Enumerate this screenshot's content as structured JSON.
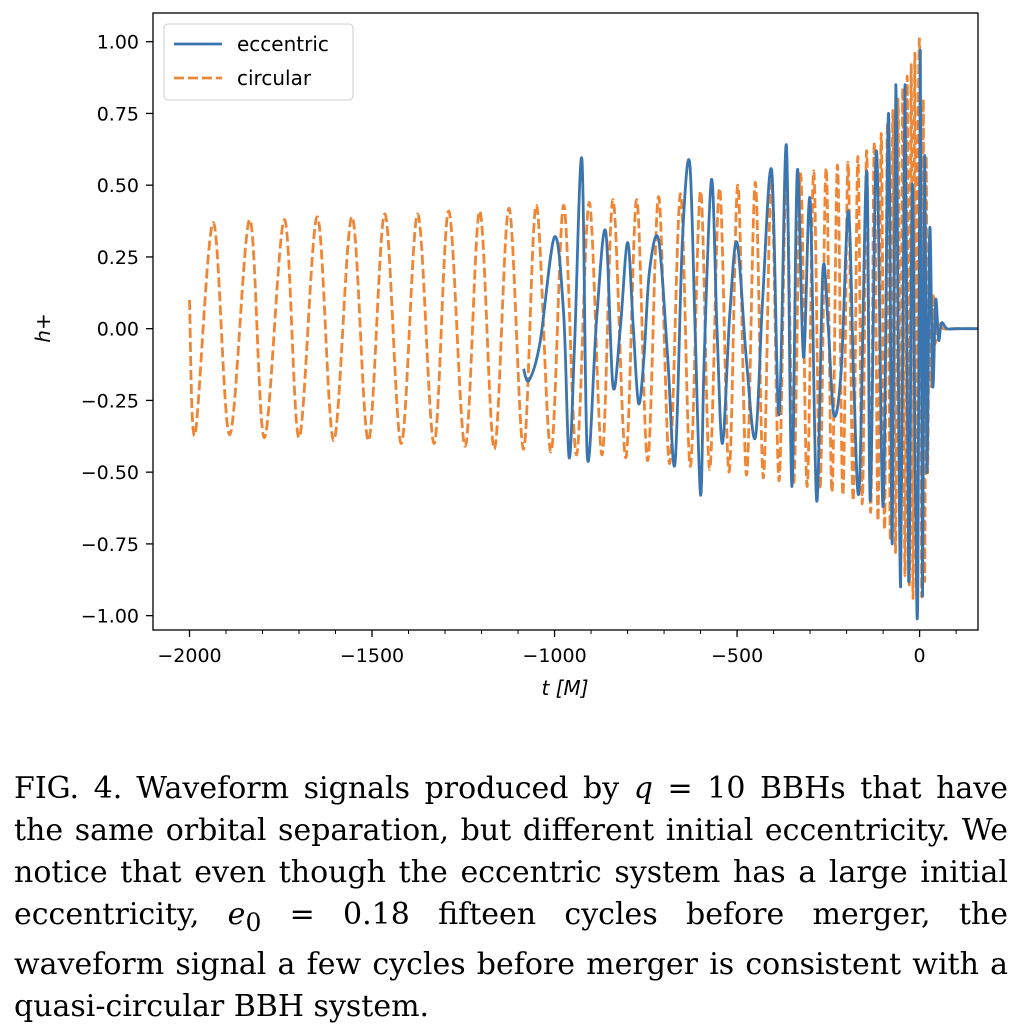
{
  "chart_data": {
    "type": "line",
    "title": "",
    "xlabel": "t [M]",
    "ylabel": "h+",
    "xlim": [
      -2100,
      160
    ],
    "ylim": [
      -1.05,
      1.1
    ],
    "x_ticks": [
      -2000,
      -1500,
      -1000,
      -500,
      0
    ],
    "x_tick_labels": [
      "−2000",
      "−1500",
      "−1000",
      "−500",
      "0"
    ],
    "y_ticks": [
      1.0,
      0.75,
      0.5,
      0.25,
      0.0,
      -0.25,
      -0.5,
      -0.75,
      -1.0
    ],
    "y_tick_labels": [
      "1.00",
      "0.75",
      "0.50",
      "0.25",
      "0.00",
      "−0.25",
      "−0.50",
      "−0.75",
      "−1.00"
    ],
    "grid": false,
    "legend_position": "top-left",
    "series": [
      {
        "name": "eccentric",
        "color": "#3b75af",
        "style": "solid",
        "x": [
          -1085,
          -1070,
          -1040,
          -1000,
          -975,
          -960,
          -945,
          -925,
          -910,
          -885,
          -860,
          -840,
          -820,
          -800,
          -785,
          -770,
          -755,
          -740,
          -715,
          -690,
          -670,
          -650,
          -630,
          -615,
          -600,
          -590,
          -570,
          -555,
          -540,
          -520,
          -500,
          -475,
          -450,
          -430,
          -405,
          -385,
          -365,
          -350,
          -335,
          -318,
          -300,
          -282,
          -265,
          -250,
          -235,
          -215,
          -195,
          -180,
          -165,
          -145,
          -135,
          -118,
          -100,
          -85,
          -75,
          -65,
          -52,
          -40,
          -30,
          -20,
          -12,
          -5,
          2,
          8,
          14,
          20,
          28,
          36,
          44,
          52,
          60,
          75,
          100,
          160
        ],
        "y": [
          -0.14,
          -0.18,
          -0.05,
          0.32,
          0.05,
          -0.45,
          -0.05,
          0.59,
          -0.45,
          0.03,
          0.34,
          -0.2,
          0.0,
          0.3,
          0.02,
          -0.26,
          -0.1,
          0.2,
          0.31,
          -0.1,
          -0.47,
          0.3,
          0.58,
          0.0,
          -0.58,
          -0.1,
          0.52,
          0.0,
          -0.4,
          0.05,
          0.3,
          -0.1,
          -0.38,
          0.1,
          0.55,
          -0.3,
          0.64,
          -0.55,
          0.55,
          -0.1,
          0.45,
          -0.6,
          0.2,
          0.0,
          -0.3,
          -0.15,
          0.41,
          -0.2,
          -0.55,
          0.55,
          -0.6,
          0.62,
          -0.62,
          0.75,
          -0.75,
          0.85,
          -0.9,
          0.85,
          -0.88,
          0.5,
          -0.5,
          -0.94,
          0.97,
          -0.93,
          0.6,
          -0.5,
          0.35,
          -0.2,
          0.1,
          -0.04,
          0.02,
          0.0,
          0.0,
          0.0
        ]
      },
      {
        "name": "circular",
        "color": "#ef8636",
        "style": "dashed",
        "x": [
          -2000,
          -1985,
          -1935,
          -1890,
          -1835,
          -1795,
          -1740,
          -1700,
          -1650,
          -1605,
          -1555,
          -1510,
          -1465,
          -1420,
          -1375,
          -1330,
          -1290,
          -1245,
          -1205,
          -1165,
          -1125,
          -1085,
          -1050,
          -1010,
          -975,
          -940,
          -905,
          -870,
          -840,
          -805,
          -775,
          -745,
          -715,
          -685,
          -655,
          -628,
          -600,
          -575,
          -548,
          -522,
          -498,
          -474,
          -450,
          -428,
          -406,
          -385,
          -365,
          -345,
          -326,
          -308,
          -290,
          -273,
          -256,
          -240,
          -225,
          -210,
          -196,
          -182,
          -169,
          -157,
          -145,
          -134,
          -124,
          -114,
          -105,
          -96,
          -88,
          -80,
          -73,
          -66,
          -59,
          -52,
          -46,
          -40,
          -34,
          -28,
          -23,
          -18,
          -13,
          -8,
          -4,
          0,
          3,
          6,
          10,
          14,
          18,
          22,
          27,
          32,
          37,
          42,
          50,
          65,
          90,
          160
        ],
        "y": [
          0.1,
          -0.37,
          0.37,
          -0.37,
          0.38,
          -0.38,
          0.38,
          -0.38,
          0.39,
          -0.39,
          0.39,
          -0.39,
          0.4,
          -0.4,
          0.4,
          -0.4,
          0.41,
          -0.41,
          0.41,
          -0.42,
          0.42,
          -0.42,
          0.43,
          -0.43,
          0.43,
          -0.44,
          0.44,
          -0.44,
          0.45,
          -0.45,
          0.45,
          -0.46,
          0.46,
          -0.47,
          0.47,
          -0.48,
          0.48,
          -0.49,
          0.49,
          -0.5,
          0.5,
          -0.51,
          0.51,
          -0.52,
          0.52,
          -0.53,
          0.53,
          -0.54,
          0.54,
          -0.55,
          0.55,
          -0.56,
          0.56,
          -0.57,
          0.57,
          -0.58,
          0.58,
          -0.6,
          0.6,
          -0.61,
          0.62,
          -0.64,
          0.65,
          -0.67,
          0.68,
          -0.7,
          0.72,
          -0.74,
          0.76,
          -0.78,
          0.8,
          -0.82,
          0.84,
          -0.86,
          0.88,
          -0.9,
          0.92,
          -0.94,
          0.96,
          -0.9,
          0.6,
          1.0,
          0.3,
          -0.93,
          0.8,
          -0.88,
          0.6,
          -0.5,
          0.32,
          -0.2,
          0.12,
          -0.05,
          0.02,
          0.0,
          0.0,
          0.0
        ]
      }
    ]
  },
  "caption": {
    "label": "FIG. 4.",
    "part1": "Waveform signals produced by ",
    "q_symbol": "q",
    "part2": " = 10 BBHs that have the same orbital separation, but different initial eccentricity. We notice that even though the eccentric system has a large initial eccentricity, ",
    "e_symbol": "e",
    "e_subscript": "0",
    "part3": " = 0.18 fifteen cycles before merger, the waveform signal a few cycles before merger is consistent with a quasi-circular BBH system."
  }
}
